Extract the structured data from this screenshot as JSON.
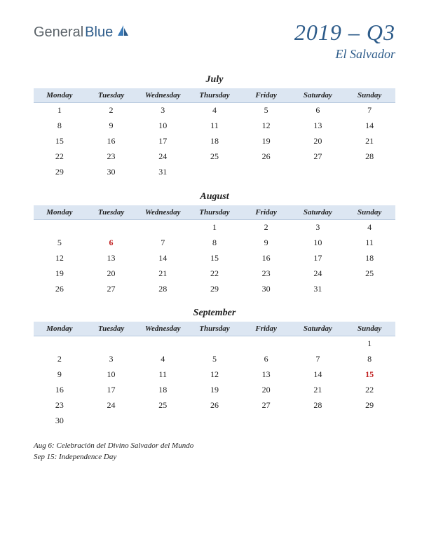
{
  "logo": {
    "part1": "General",
    "part2": "Blue",
    "part1_color": "#5a6268",
    "part2_color": "#2e5c8a",
    "icon_color": "#2e5c8a"
  },
  "title": {
    "quarter": "2019 – Q3",
    "country": "El Salvador",
    "color": "#2e5c8a",
    "quarter_fontsize": 32,
    "country_fontsize": 18
  },
  "day_headers": [
    "Monday",
    "Tuesday",
    "Wednesday",
    "Thursday",
    "Friday",
    "Saturday",
    "Sunday"
  ],
  "header_bg": "#dce6f2",
  "header_border": "#b8c9de",
  "holiday_color": "#c02020",
  "months": [
    {
      "name": "July",
      "weeks": [
        [
          {
            "d": "1"
          },
          {
            "d": "2"
          },
          {
            "d": "3"
          },
          {
            "d": "4"
          },
          {
            "d": "5"
          },
          {
            "d": "6"
          },
          {
            "d": "7"
          }
        ],
        [
          {
            "d": "8"
          },
          {
            "d": "9"
          },
          {
            "d": "10"
          },
          {
            "d": "11"
          },
          {
            "d": "12"
          },
          {
            "d": "13"
          },
          {
            "d": "14"
          }
        ],
        [
          {
            "d": "15"
          },
          {
            "d": "16"
          },
          {
            "d": "17"
          },
          {
            "d": "18"
          },
          {
            "d": "19"
          },
          {
            "d": "20"
          },
          {
            "d": "21"
          }
        ],
        [
          {
            "d": "22"
          },
          {
            "d": "23"
          },
          {
            "d": "24"
          },
          {
            "d": "25"
          },
          {
            "d": "26"
          },
          {
            "d": "27"
          },
          {
            "d": "28"
          }
        ],
        [
          {
            "d": "29"
          },
          {
            "d": "30"
          },
          {
            "d": "31"
          },
          {
            "d": ""
          },
          {
            "d": ""
          },
          {
            "d": ""
          },
          {
            "d": ""
          }
        ]
      ]
    },
    {
      "name": "August",
      "weeks": [
        [
          {
            "d": ""
          },
          {
            "d": ""
          },
          {
            "d": ""
          },
          {
            "d": "1"
          },
          {
            "d": "2"
          },
          {
            "d": "3"
          },
          {
            "d": "4"
          }
        ],
        [
          {
            "d": "5"
          },
          {
            "d": "6",
            "h": true
          },
          {
            "d": "7"
          },
          {
            "d": "8"
          },
          {
            "d": "9"
          },
          {
            "d": "10"
          },
          {
            "d": "11"
          }
        ],
        [
          {
            "d": "12"
          },
          {
            "d": "13"
          },
          {
            "d": "14"
          },
          {
            "d": "15"
          },
          {
            "d": "16"
          },
          {
            "d": "17"
          },
          {
            "d": "18"
          }
        ],
        [
          {
            "d": "19"
          },
          {
            "d": "20"
          },
          {
            "d": "21"
          },
          {
            "d": "22"
          },
          {
            "d": "23"
          },
          {
            "d": "24"
          },
          {
            "d": "25"
          }
        ],
        [
          {
            "d": "26"
          },
          {
            "d": "27"
          },
          {
            "d": "28"
          },
          {
            "d": "29"
          },
          {
            "d": "30"
          },
          {
            "d": "31"
          },
          {
            "d": ""
          }
        ]
      ]
    },
    {
      "name": "September",
      "weeks": [
        [
          {
            "d": ""
          },
          {
            "d": ""
          },
          {
            "d": ""
          },
          {
            "d": ""
          },
          {
            "d": ""
          },
          {
            "d": ""
          },
          {
            "d": "1"
          }
        ],
        [
          {
            "d": "2"
          },
          {
            "d": "3"
          },
          {
            "d": "4"
          },
          {
            "d": "5"
          },
          {
            "d": "6"
          },
          {
            "d": "7"
          },
          {
            "d": "8"
          }
        ],
        [
          {
            "d": "9"
          },
          {
            "d": "10"
          },
          {
            "d": "11"
          },
          {
            "d": "12"
          },
          {
            "d": "13"
          },
          {
            "d": "14"
          },
          {
            "d": "15",
            "h": true
          }
        ],
        [
          {
            "d": "16"
          },
          {
            "d": "17"
          },
          {
            "d": "18"
          },
          {
            "d": "19"
          },
          {
            "d": "20"
          },
          {
            "d": "21"
          },
          {
            "d": "22"
          }
        ],
        [
          {
            "d": "23"
          },
          {
            "d": "24"
          },
          {
            "d": "25"
          },
          {
            "d": "26"
          },
          {
            "d": "27"
          },
          {
            "d": "28"
          },
          {
            "d": "29"
          }
        ],
        [
          {
            "d": "30"
          },
          {
            "d": ""
          },
          {
            "d": ""
          },
          {
            "d": ""
          },
          {
            "d": ""
          },
          {
            "d": ""
          },
          {
            "d": ""
          }
        ]
      ]
    }
  ],
  "notes": [
    "Aug 6: Celebración del Divino Salvador del Mundo",
    "Sep 15: Independence Day"
  ]
}
